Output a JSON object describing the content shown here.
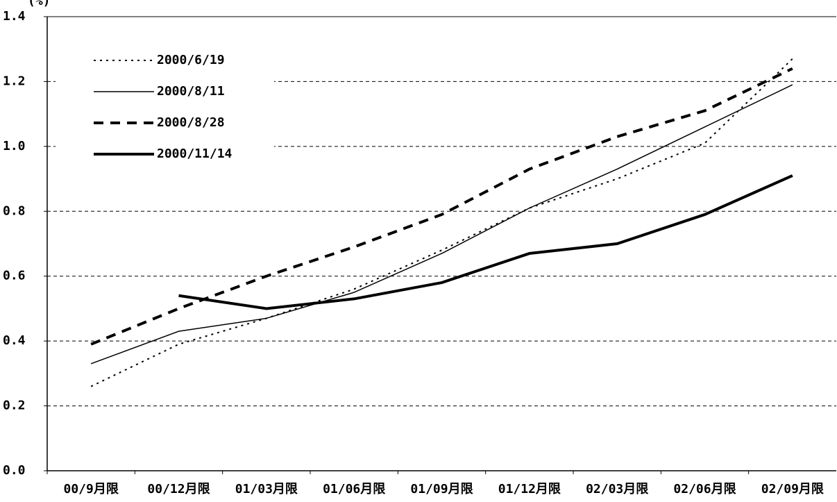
{
  "chart_data": {
    "type": "line",
    "y_label": "(%)",
    "categories": [
      "00/9月限",
      "00/12月限",
      "01/03月限",
      "01/06月限",
      "01/09月限",
      "01/12月限",
      "02/03月限",
      "02/06月限",
      "02/09月限"
    ],
    "series": [
      {
        "name": "2000/6/19",
        "color": "#000000",
        "dash": "dotted",
        "width": 2,
        "values": [
          0.26,
          0.39,
          0.47,
          0.56,
          0.68,
          0.81,
          0.9,
          1.01,
          1.27
        ]
      },
      {
        "name": "2000/8/11",
        "color": "#000000",
        "dash": "solid",
        "width": 1.5,
        "values": [
          0.33,
          0.43,
          0.47,
          0.55,
          0.67,
          0.81,
          0.93,
          1.06,
          1.19
        ]
      },
      {
        "name": "2000/8/28",
        "color": "#000000",
        "dash": "dashed",
        "width": 4,
        "values": [
          0.39,
          0.5,
          0.6,
          0.69,
          0.79,
          0.93,
          1.03,
          1.11,
          1.24
        ]
      },
      {
        "name": "2000/11/14",
        "color": "#000000",
        "dash": "solid",
        "width": 4,
        "values": [
          null,
          0.54,
          0.5,
          0.53,
          0.58,
          0.67,
          0.7,
          0.79,
          0.91
        ]
      }
    ],
    "ylim": [
      0,
      1.4
    ],
    "yticks": [
      {
        "value": 0,
        "label": "0.0"
      },
      0.2,
      0.4,
      0.6,
      0.8,
      {
        "value": 1,
        "label": "1.0"
      },
      1.2,
      1.4
    ],
    "grid": true,
    "legend": "upper left"
  }
}
